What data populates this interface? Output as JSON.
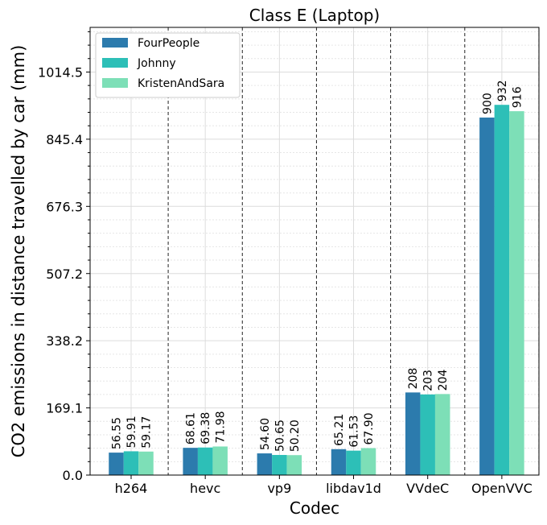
{
  "chart_data": {
    "type": "bar",
    "title": "Class E (Laptop)",
    "xlabel": "Codec",
    "ylabel": "CO2 emissions in distance travelled by car (mm)",
    "categories": [
      "h264",
      "hevc",
      "vp9",
      "libdav1d",
      "VVdeC",
      "OpenVVC"
    ],
    "series": [
      {
        "name": "FourPeople",
        "color": "#2c7bad",
        "values": [
          56.55,
          68.61,
          54.6,
          65.21,
          208,
          900
        ],
        "labels": [
          "56.55",
          "68.61",
          "54.60",
          "65.21",
          "208",
          "900"
        ]
      },
      {
        "name": "Johnny",
        "color": "#2dbfb7",
        "values": [
          59.91,
          69.38,
          50.65,
          61.53,
          203,
          932
        ],
        "labels": [
          "59.91",
          "69.38",
          "50.65",
          "61.53",
          "203",
          "932"
        ]
      },
      {
        "name": "KristenAndSara",
        "color": "#7ddfb7",
        "values": [
          59.17,
          71.98,
          50.2,
          67.9,
          204,
          916
        ],
        "labels": [
          "59.17",
          "71.98",
          "50.20",
          "67.90",
          "204",
          "916"
        ]
      }
    ],
    "yticks": [
      0.0,
      169.1,
      338.2,
      507.2,
      676.3,
      845.4,
      1014.5
    ],
    "ytick_labels": [
      "0.0",
      "169.1",
      "338.2",
      "507.2",
      "676.3",
      "845.4",
      "1014.5"
    ],
    "ylim": [
      0,
      1127
    ],
    "grid": true,
    "legend_position": "top-left"
  }
}
